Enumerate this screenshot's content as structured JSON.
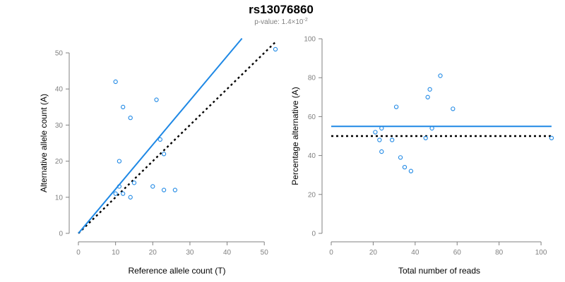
{
  "title": "rs13076860",
  "subtitle": {
    "prefix": "p-value: 1.4×10",
    "exponent": "-2"
  },
  "colors": {
    "points": "#1e88e5",
    "fit_line": "#1e88e5",
    "reference_line": "#000000",
    "axis": "#808080"
  },
  "chart_data": [
    {
      "type": "scatter",
      "xlabel": "Reference allele count (T)",
      "ylabel": "Alternative allele count (A)",
      "xlim": [
        0,
        53
      ],
      "ylim": [
        0,
        50
      ],
      "xticks": [
        0,
        10,
        20,
        30,
        40,
        50
      ],
      "yticks": [
        0,
        10,
        20,
        30,
        40,
        50
      ],
      "points": [
        {
          "x": 10,
          "y": 42
        },
        {
          "x": 12,
          "y": 35
        },
        {
          "x": 14,
          "y": 32
        },
        {
          "x": 21,
          "y": 37
        },
        {
          "x": 22,
          "y": 26
        },
        {
          "x": 23,
          "y": 22
        },
        {
          "x": 11,
          "y": 20
        },
        {
          "x": 15,
          "y": 14
        },
        {
          "x": 20,
          "y": 13
        },
        {
          "x": 23,
          "y": 12
        },
        {
          "x": 26,
          "y": 12
        },
        {
          "x": 10,
          "y": 11
        },
        {
          "x": 12,
          "y": 11
        },
        {
          "x": 11,
          "y": 13
        },
        {
          "x": 14,
          "y": 10
        },
        {
          "x": 53,
          "y": 51
        }
      ],
      "lines": [
        {
          "role": "fit",
          "x": [
            0,
            44
          ],
          "y": [
            0,
            54
          ]
        },
        {
          "role": "reference",
          "x": [
            0,
            53
          ],
          "y": [
            0,
            53
          ]
        }
      ]
    },
    {
      "type": "scatter",
      "xlabel": "Total number of reads",
      "ylabel": "Percentage alternative (A)",
      "xlim": [
        0,
        103
      ],
      "ylim": [
        0,
        100
      ],
      "xticks": [
        0,
        20,
        40,
        60,
        80,
        100
      ],
      "yticks": [
        0,
        20,
        40,
        60,
        80,
        100
      ],
      "points": [
        {
          "x": 21,
          "y": 52
        },
        {
          "x": 23,
          "y": 48
        },
        {
          "x": 24,
          "y": 54
        },
        {
          "x": 24,
          "y": 42
        },
        {
          "x": 29,
          "y": 48
        },
        {
          "x": 31,
          "y": 65
        },
        {
          "x": 33,
          "y": 39
        },
        {
          "x": 35,
          "y": 34
        },
        {
          "x": 38,
          "y": 32
        },
        {
          "x": 45,
          "y": 49
        },
        {
          "x": 46,
          "y": 70
        },
        {
          "x": 47,
          "y": 74
        },
        {
          "x": 48,
          "y": 54
        },
        {
          "x": 52,
          "y": 81
        },
        {
          "x": 58,
          "y": 64
        },
        {
          "x": 105,
          "y": 49
        }
      ],
      "lines": [
        {
          "role": "fit",
          "x": [
            0,
            105
          ],
          "y": [
            55,
            55
          ]
        },
        {
          "role": "reference",
          "x": [
            0,
            105
          ],
          "y": [
            50,
            50
          ]
        }
      ]
    }
  ]
}
